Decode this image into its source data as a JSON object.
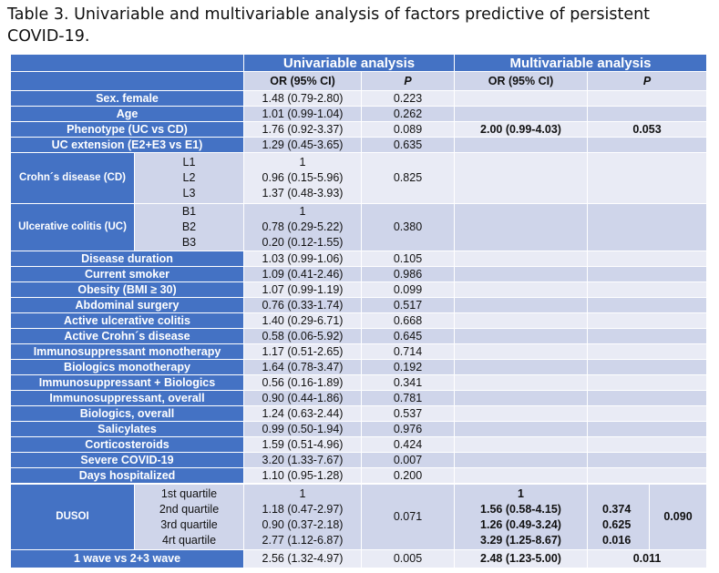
{
  "title": "Table 3. Univariable and multivariable analysis of factors predictive of persistent COVID-19.",
  "header": {
    "univariable": "Univariable analysis",
    "multivariable": "Multivariable analysis"
  },
  "subheader": {
    "or": "OR (95% CI)",
    "p": "P",
    "or_m": "OR (95% CI)",
    "p_m": "P"
  },
  "rows": [
    {
      "label": "Sex. female",
      "or": "1.48 (0.79-2.80)",
      "p": "0.223"
    },
    {
      "label": "Age",
      "or": "1.01 (0.99-1.04)",
      "p": "0.262"
    },
    {
      "label": "Phenotype (UC vs CD)",
      "or": "1.76 (0.92-3.37)",
      "p": "0.089",
      "or_m": "2.00 (0.99-4.03)",
      "p_m": "0.053"
    },
    {
      "label": "UC extension (E2+E3 vs E1)",
      "or": "1.29 (0.45-3.65)",
      "p": "0.635"
    }
  ],
  "cd": {
    "label": "Crohn´s disease (CD)",
    "subs": [
      "L1",
      "L2",
      "L3"
    ],
    "or": [
      "1",
      "0.96 (0.15-5.96)",
      "1.37 (0.48-3.93)"
    ],
    "p": "0.825"
  },
  "uc": {
    "label": "Ulcerative colitis (UC)",
    "subs": [
      "B1",
      "B2",
      "B3"
    ],
    "or": [
      "1",
      "0.78 (0.29-5.22)",
      "0.20 (0.12-1.55)"
    ],
    "p": "0.380"
  },
  "rows2": [
    {
      "label": "Disease duration",
      "or": "1.03 (0.99-1.06)",
      "p": "0.105"
    },
    {
      "label": "Current smoker",
      "or": "1.09 (0.41-2.46)",
      "p": "0.986"
    },
    {
      "label": "Obesity (BMI ≥ 30)",
      "or": "1.07 (0.99-1.19)",
      "p": "0.099"
    },
    {
      "label": "Abdominal surgery",
      "or": "0.76 (0.33-1.74)",
      "p": "0.517"
    },
    {
      "label": "Active ulcerative colitis",
      "or": "1.40 (0.29-6.71)",
      "p": "0.668"
    },
    {
      "label": "Active Crohn´s disease",
      "or": "0.58 (0.06-5.92)",
      "p": "0.645"
    },
    {
      "label": "Immunosuppressant monotherapy",
      "or": "1.17 (0.51-2.65)",
      "p": "0.714"
    },
    {
      "label": "Biologics monotherapy",
      "or": "1.64 (0.78-3.47)",
      "p": "0.192"
    },
    {
      "label": "Immunosuppressant + Biologics",
      "or": "0.56 (0.16-1.89)",
      "p": "0.341"
    },
    {
      "label": "Immunosuppressant, overall",
      "or": "0.90 (0.44-1.86)",
      "p": "0.781"
    },
    {
      "label": "Biologics, overall",
      "or": "1.24 (0.63-2.44)",
      "p": "0.537"
    },
    {
      "label": "Salicylates",
      "or": "0.99 (0.50-1.94)",
      "p": "0.976"
    },
    {
      "label": "Corticosteroids",
      "or": "1.59 (0.51-4.96)",
      "p": "0.424"
    },
    {
      "label": "Severe COVID-19",
      "or": "3.20 (1.33-7.67)",
      "p": "0.007"
    },
    {
      "label": "Days hospitalized",
      "or": "1.10 (0.95-1.28)",
      "p": "0.200"
    }
  ],
  "dusoi": {
    "label": "DUSOI",
    "subs": [
      "1st quartile",
      "2nd quartile",
      "3rd quartile",
      "4rt quartile"
    ],
    "or": [
      "1",
      "1.18 (0.47-2.97)",
      "0.90 (0.37-2.18)",
      "2.77 (1.12-6.87)"
    ],
    "p": "0.071",
    "or_m": [
      "1",
      "1.56 (0.58-4.15)",
      "1.26 (0.49-3.24)",
      "3.29 (1.25-8.67)"
    ],
    "p_each": [
      "",
      "0.374",
      "0.625",
      "0.016"
    ],
    "p_overall": "0.090"
  },
  "wave": {
    "label": "1 wave vs 2+3 wave",
    "or": "2.56 (1.32-4.97)",
    "p": "0.005",
    "or_m": "2.48 (1.23-5.00)",
    "p_m": "0.011"
  }
}
